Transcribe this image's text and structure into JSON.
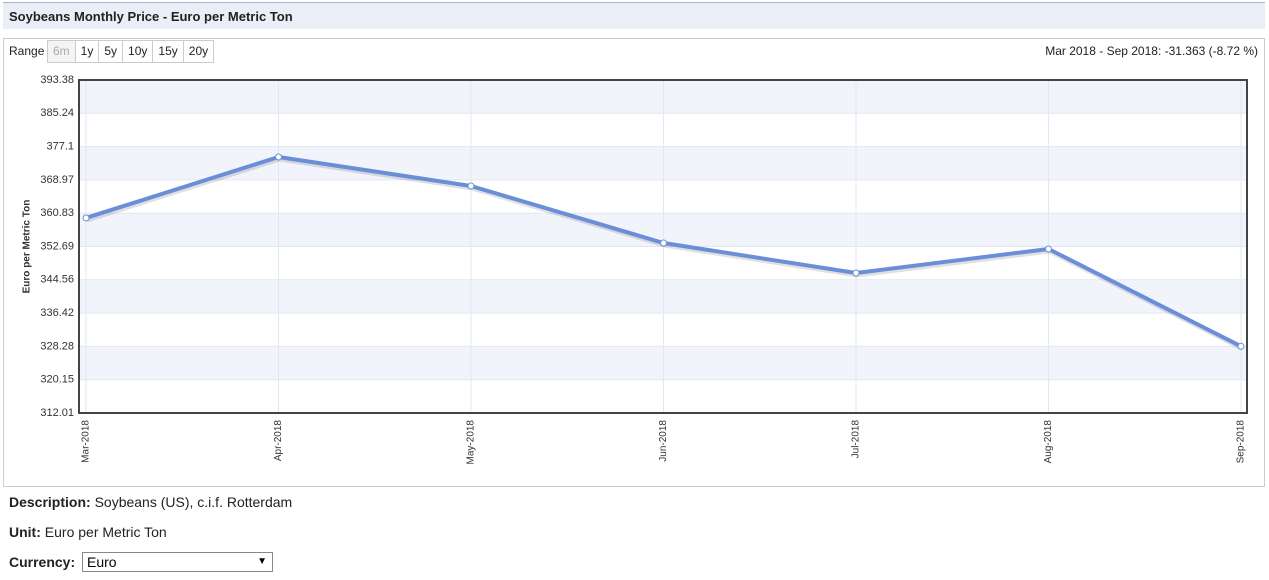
{
  "header": {
    "title": "Soybeans Monthly Price - Euro per Metric Ton"
  },
  "range": {
    "label": "Range",
    "buttons": [
      "6m",
      "1y",
      "5y",
      "10y",
      "15y",
      "20y"
    ],
    "summary": "Mar 2018 - Sep 2018: -31.363 (-8.72 %)"
  },
  "chart_data": {
    "type": "line",
    "y_label": "Euro per Metric Ton",
    "categories": [
      "Mar-2018",
      "Apr-2018",
      "May-2018",
      "Jun-2018",
      "Jul-2018",
      "Aug-2018",
      "Sep-2018"
    ],
    "values": [
      359.67,
      374.57,
      367.48,
      353.55,
      346.22,
      352.09,
      328.31
    ],
    "color": "#6a8fd8",
    "ylim": [
      312.01,
      393.38
    ],
    "yticks": [
      312.01,
      320.15,
      328.28,
      336.42,
      344.56,
      352.69,
      360.83,
      368.97,
      377.1,
      385.24,
      393.38
    ],
    "grid": true
  },
  "details": {
    "description_label": "Description:",
    "description": "Soybeans (US), c.i.f. Rotterdam",
    "unit_label": "Unit:",
    "unit": "Euro per Metric Ton",
    "currency_label": "Currency:",
    "currency": "Euro"
  }
}
